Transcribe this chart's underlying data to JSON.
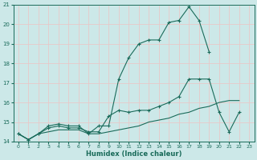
{
  "xlabel": "Humidex (Indice chaleur)",
  "bg_color": "#cce8e8",
  "grid_color": "#e8c8c8",
  "line_color": "#1a6b5a",
  "xlim": [
    -0.5,
    23.5
  ],
  "ylim": [
    14,
    21
  ],
  "yticks": [
    14,
    15,
    16,
    17,
    18,
    19,
    20,
    21
  ],
  "xticks": [
    0,
    1,
    2,
    3,
    4,
    5,
    6,
    7,
    8,
    9,
    10,
    11,
    12,
    13,
    14,
    15,
    16,
    17,
    18,
    19,
    20,
    21,
    22,
    23
  ],
  "x": [
    0,
    1,
    2,
    3,
    4,
    5,
    6,
    7,
    8,
    9,
    10,
    11,
    12,
    13,
    14,
    15,
    16,
    17,
    18,
    19,
    20,
    21,
    22,
    23
  ],
  "line1_y": [
    14.4,
    14.1,
    14.4,
    14.8,
    14.9,
    14.8,
    14.8,
    14.4,
    14.8,
    14.8,
    17.2,
    18.3,
    19.0,
    19.2,
    19.2,
    20.1,
    20.2,
    20.9,
    20.2,
    18.6,
    null,
    null,
    null,
    null
  ],
  "line2_y": [
    14.4,
    14.1,
    14.4,
    14.7,
    14.8,
    14.7,
    14.7,
    14.5,
    14.5,
    15.3,
    15.6,
    15.5,
    15.6,
    15.6,
    15.8,
    16.0,
    16.3,
    17.2,
    17.2,
    17.2,
    15.5,
    14.5,
    15.5,
    null
  ],
  "line3_y": [
    14.4,
    14.1,
    14.4,
    14.5,
    14.6,
    14.6,
    14.6,
    14.4,
    14.4,
    14.5,
    14.6,
    14.7,
    14.8,
    15.0,
    15.1,
    15.2,
    15.4,
    15.5,
    15.7,
    15.8,
    16.0,
    16.1,
    16.1,
    null
  ]
}
